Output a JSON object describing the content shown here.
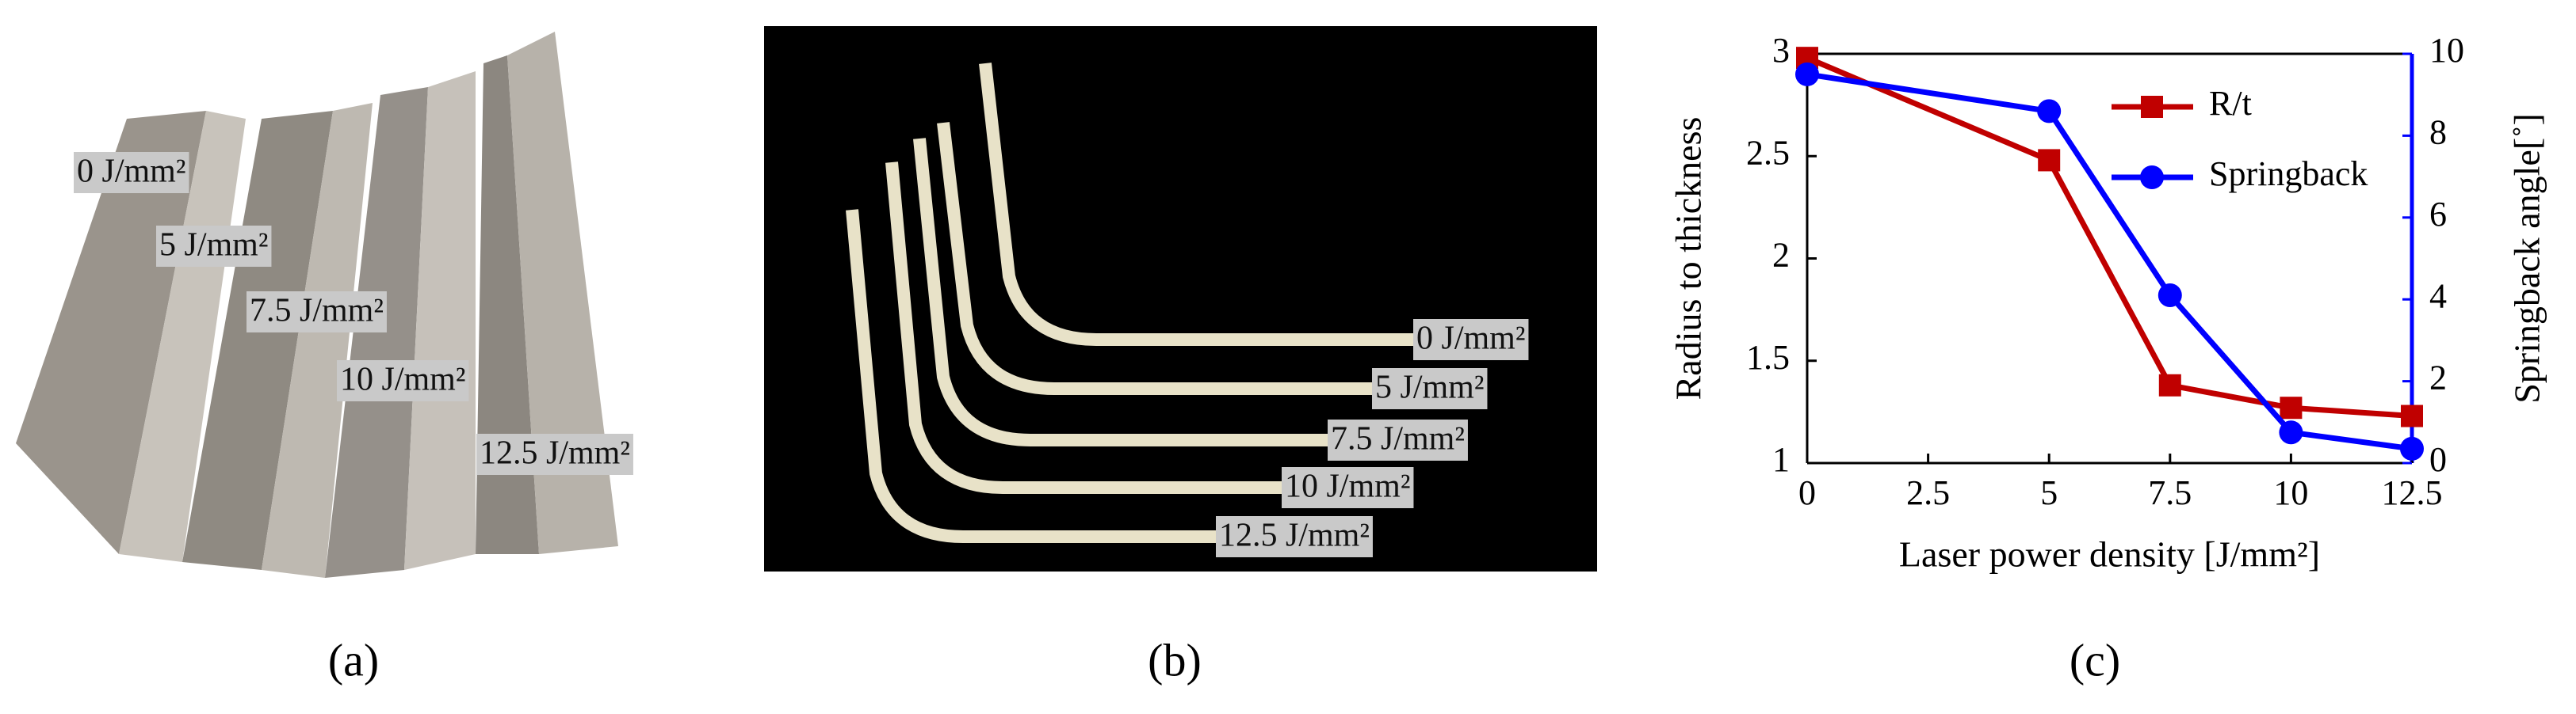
{
  "panel_labels": [
    "(a)",
    "(b)",
    "(c)"
  ],
  "photo_a": {
    "labels": [
      "0 J/mm²",
      "5 J/mm²",
      "7.5 J/mm²",
      "10 J/mm²",
      "12.5 J/mm²"
    ]
  },
  "photo_b": {
    "labels": [
      "0 J/mm²",
      "5 J/mm²",
      "7.5 J/mm²",
      "10 J/mm²",
      "12.5 J/mm²"
    ]
  },
  "chart_data": {
    "type": "line",
    "x_label": "Laser power density [J/mm²]",
    "y_label": "Radius to thickness",
    "y2_label": "Springback angle[˚]",
    "x": [
      0,
      5,
      7.5,
      10,
      12.5
    ],
    "xlim": [
      0,
      12.5
    ],
    "xticks": [
      0,
      2.5,
      5,
      7.5,
      10,
      12.5
    ],
    "ylim": [
      1,
      3
    ],
    "yticks": [
      1,
      1.5,
      2,
      2.5,
      3
    ],
    "y2lim": [
      0,
      10
    ],
    "y2ticks": [
      0,
      2,
      4,
      6,
      8,
      10
    ],
    "legend": "upper right",
    "series": [
      {
        "name": "R/t",
        "color": "#c00000",
        "marker": "square",
        "values": [
          2.98,
          2.48,
          1.38,
          1.27,
          1.23
        ]
      },
      {
        "name": "Springback",
        "color": "#0000ff",
        "marker": "circle",
        "axis": "y2",
        "values": [
          9.5,
          8.6,
          4.1,
          0.75,
          0.35
        ]
      }
    ]
  }
}
